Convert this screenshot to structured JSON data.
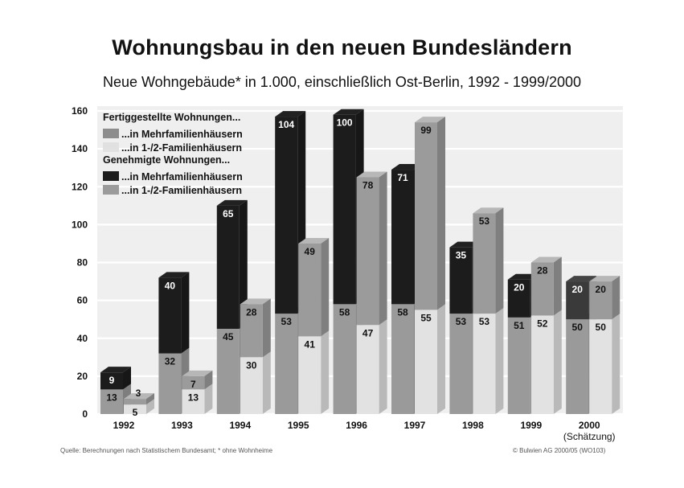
{
  "chart_data": {
    "type": "bar",
    "title": "Wohnungsbau in den neuen Bundesländern",
    "subtitle": "Neue Wohngebäude* in 1.000, einschließlich Ost-Berlin, 1992 - 1999/2000",
    "categories": [
      "1992",
      "1993",
      "1994",
      "1995",
      "1996",
      "1997",
      "1998",
      "1999",
      "2000"
    ],
    "category_note": {
      "2000": "(Schätzung)"
    },
    "ylim": [
      0,
      160
    ],
    "yticks": [
      0,
      20,
      40,
      60,
      80,
      100,
      120,
      140,
      160
    ],
    "stacked": true,
    "groups": [
      {
        "name": "Fertiggestellte Wohnungen...",
        "series": [
          {
            "name": "...in Mehrfamilienhäusern",
            "values": [
              13,
              32,
              45,
              53,
              58,
              58,
              53,
              51,
              50
            ],
            "color": "#8d8d8d"
          },
          {
            "name": "...in 1-/2-Familienhäusern",
            "values": [
              9,
              40,
              65,
              104,
              100,
              71,
              35,
              20,
              20
            ],
            "color": "#e1e1e1"
          }
        ]
      },
      {
        "name": "Genehmigte Wohnungen...",
        "series": [
          {
            "name": "...in Mehrfamilienhäusern",
            "values": [
              5,
              13,
              30,
              41,
              47,
              55,
              53,
              52,
              50
            ],
            "color": "#1c1c1c"
          },
          {
            "name": "...in 1-/2-Familienhäusern",
            "values": [
              3,
              7,
              28,
              49,
              78,
              99,
              53,
              28,
              20
            ],
            "color": "#9b9b9b"
          }
        ]
      }
    ],
    "bars": [
      {
        "category": "1992",
        "bottom": 13,
        "top": 9,
        "bottom_fill": "#9a9a9a",
        "top_fill": "#1c1c1c"
      },
      {
        "category": "1992",
        "bottom": 5,
        "top": 3,
        "bottom_fill": "#e2e2e2",
        "top_fill": "#9b9b9b"
      },
      {
        "category": "1993",
        "bottom": 32,
        "top": 40,
        "bottom_fill": "#9a9a9a",
        "top_fill": "#1c1c1c"
      },
      {
        "category": "1993",
        "bottom": 13,
        "top": 7,
        "bottom_fill": "#e2e2e2",
        "top_fill": "#9b9b9b"
      },
      {
        "category": "1994",
        "bottom": 45,
        "top": 65,
        "bottom_fill": "#9a9a9a",
        "top_fill": "#1c1c1c"
      },
      {
        "category": "1994",
        "bottom": 30,
        "top": 28,
        "bottom_fill": "#e2e2e2",
        "top_fill": "#9b9b9b"
      },
      {
        "category": "1995",
        "bottom": 53,
        "top": 104,
        "bottom_fill": "#9a9a9a",
        "top_fill": "#1c1c1c"
      },
      {
        "category": "1995",
        "bottom": 41,
        "top": 49,
        "bottom_fill": "#e2e2e2",
        "top_fill": "#9b9b9b"
      },
      {
        "category": "1996",
        "bottom": 58,
        "top": 100,
        "bottom_fill": "#9a9a9a",
        "top_fill": "#1c1c1c"
      },
      {
        "category": "1996",
        "bottom": 47,
        "top": 78,
        "bottom_fill": "#e2e2e2",
        "top_fill": "#9b9b9b"
      },
      {
        "category": "1997",
        "bottom": 58,
        "top": 71,
        "bottom_fill": "#9a9a9a",
        "top_fill": "#1c1c1c"
      },
      {
        "category": "1997",
        "bottom": 55,
        "top": 99,
        "bottom_fill": "#e2e2e2",
        "top_fill": "#9b9b9b"
      },
      {
        "category": "1998",
        "bottom": 53,
        "top": 35,
        "bottom_fill": "#9a9a9a",
        "top_fill": "#1c1c1c"
      },
      {
        "category": "1998",
        "bottom": 53,
        "top": 53,
        "bottom_fill": "#e2e2e2",
        "top_fill": "#9b9b9b"
      },
      {
        "category": "1999",
        "bottom": 51,
        "top": 20,
        "bottom_fill": "#9a9a9a",
        "top_fill": "#1c1c1c"
      },
      {
        "category": "1999",
        "bottom": 52,
        "top": 28,
        "bottom_fill": "#e2e2e2",
        "top_fill": "#9b9b9b"
      },
      {
        "category": "2000",
        "bottom": 50,
        "top": 20,
        "bottom_fill": "#9a9a9a",
        "top_fill": "#3a3a3a"
      },
      {
        "category": "2000",
        "bottom": 50,
        "top": 20,
        "bottom_fill": "#e2e2e2",
        "top_fill": "#9b9b9b"
      }
    ],
    "legend_position": "top-left",
    "grid": true
  },
  "footer": {
    "source": "Quelle: Berechnungen nach Statistischem Bundesamt; * ohne Wohnheime",
    "copyright": "© Bulwien AG 2000/05 (WO103)"
  }
}
